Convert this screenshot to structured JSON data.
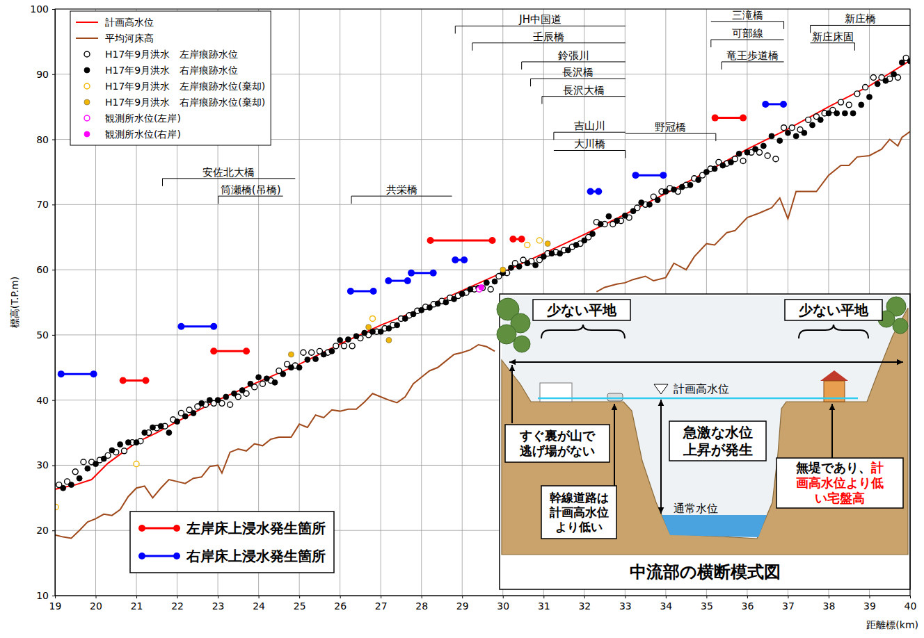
{
  "chart_data": {
    "type": "line",
    "xlabel": "距離標(km)",
    "ylabel": "標高(T.P.m)",
    "xlim": [
      19,
      40
    ],
    "xticks": [
      19,
      20,
      21,
      22,
      23,
      24,
      25,
      26,
      27,
      28,
      29,
      30,
      31,
      32,
      33,
      34,
      35,
      36,
      37,
      38,
      39,
      40
    ],
    "ylim": [
      10,
      100
    ],
    "yticks": [
      10,
      20,
      30,
      40,
      50,
      60,
      70,
      80,
      90,
      100
    ],
    "grid": true,
    "legend": "upper left",
    "series": [
      {
        "name": "計画高水位",
        "type": "line",
        "color": "#ff0000",
        "marker": "none",
        "line_style": "solid",
        "x": [
          19,
          19.5,
          19.9,
          20.3,
          21,
          21.5,
          22,
          23,
          24,
          25,
          26,
          27,
          28,
          29,
          30,
          31,
          32,
          33,
          34,
          35,
          36,
          37,
          38,
          39,
          40
        ],
        "values": [
          26.3,
          27,
          27.8,
          30.3,
          33.5,
          35,
          36.7,
          40,
          42.8,
          45.5,
          48.6,
          51.5,
          54,
          56.8,
          59.6,
          62.5,
          65.4,
          68.5,
          71.7,
          75,
          78.5,
          81.6,
          85,
          88.2,
          92.1
        ]
      },
      {
        "name": "平均河床高",
        "type": "line",
        "color": "#a04a1c",
        "marker": "none",
        "line_style": "solid",
        "x": [
          19,
          19.2,
          19.4,
          19.6,
          19.8,
          20,
          20.2,
          20.4,
          20.6,
          20.8,
          21,
          21.2,
          21.4,
          21.6,
          21.8,
          22,
          22.2,
          22.4,
          22.6,
          22.8,
          23,
          23.1,
          23.3,
          23.5,
          23.7,
          23.9,
          24.1,
          24.3,
          24.5,
          24.8,
          25,
          25.2,
          25.4,
          25.6,
          25.8,
          26,
          26.2,
          26.4,
          26.6,
          26.8,
          27,
          27.2,
          27.4,
          27.6,
          27.8,
          28,
          28.2,
          28.4,
          28.6,
          28.8,
          29,
          29.2,
          29.4,
          29.6,
          29.8,
          31,
          32.3,
          32.5,
          32.8,
          33,
          33.2,
          33.5,
          33.7,
          34,
          34.2,
          34.5,
          34.7,
          35,
          35.2,
          35.5,
          35.7,
          36,
          36.3,
          36.6,
          36.8,
          37,
          37.2,
          37.5,
          37.7,
          38,
          38.3,
          38.5,
          38.7,
          39,
          39.3,
          39.5,
          39.7,
          39.8,
          40
        ],
        "values": [
          19.3,
          19,
          18.8,
          20,
          21.3,
          21.8,
          22.5,
          22.3,
          23.2,
          25.2,
          26.5,
          26.8,
          25,
          26.5,
          27.8,
          27.5,
          27.2,
          28,
          28.2,
          29.8,
          30,
          28.8,
          32,
          32.5,
          32.2,
          33.3,
          33,
          34,
          34.3,
          34.3,
          36.3,
          35.8,
          37.7,
          37.3,
          38.5,
          38.3,
          38.6,
          38.6,
          39.7,
          41,
          40.5,
          40,
          39.6,
          40.5,
          42.5,
          43.5,
          44.5,
          45,
          46,
          47,
          47.3,
          47.7,
          48.5,
          48.2,
          47.5,
          null,
          56.6,
          57.3,
          57.8,
          58,
          58.5,
          59,
          58.3,
          58.8,
          61,
          60,
          62,
          64,
          63.8,
          65.7,
          66,
          68,
          68.7,
          69.5,
          71,
          67.8,
          72,
          72,
          72,
          74.5,
          76,
          76,
          77.3,
          77.5,
          78.5,
          80,
          79,
          80.3,
          81.2
        ]
      },
      {
        "name": "H17年9月洪水　左岸痕跡水位",
        "type": "scatter",
        "color": "#000000",
        "marker": "open_circle",
        "x": [
          19.1,
          19.3,
          19.5,
          19.7,
          19.9,
          20.1,
          20.3,
          20.5,
          20.7,
          20.9,
          21.1,
          21.3,
          21.5,
          21.7,
          21.9,
          22.1,
          22.3,
          22.5,
          22.7,
          22.9,
          23.1,
          23.3,
          23.5,
          23.7,
          23.9,
          24.1,
          24.3,
          24.5,
          24.7,
          24.9,
          25.1,
          25.3,
          25.5,
          25.7,
          25.9,
          26.1,
          26.3,
          26.5,
          26.7,
          26.9,
          27.1,
          27.3,
          27.5,
          27.7,
          27.9,
          28.1,
          28.3,
          28.5,
          28.7,
          28.9,
          29.1,
          29.3,
          29.5,
          29.7,
          29.9,
          30.1,
          30.3,
          30.5,
          30.7,
          30.9,
          31.1,
          31.3,
          31.5,
          31.7,
          31.9,
          32.1,
          32.3,
          32.5,
          32.7,
          32.9,
          33.1,
          33.3,
          33.5,
          33.7,
          33.9,
          34.1,
          34.3,
          34.5,
          34.7,
          34.9,
          35.1,
          35.3,
          35.5,
          35.7,
          35.9,
          36.1,
          36.3,
          36.5,
          36.7,
          36.9,
          37.1,
          37.3,
          37.5,
          37.7,
          37.9,
          38.1,
          38.3,
          38.5,
          38.7,
          38.9,
          39.1,
          39.3,
          39.5,
          39.7,
          39.9
        ],
        "values": [
          27,
          27.5,
          29,
          30.5,
          30.5,
          30.8,
          31.5,
          32,
          32.2,
          33.5,
          33.7,
          35,
          35.7,
          36,
          37,
          38,
          38.5,
          39,
          39.3,
          39.5,
          39.5,
          39.3,
          40.5,
          41,
          42,
          42.5,
          43,
          44.5,
          45.5,
          45.3,
          47.3,
          47.3,
          47.5,
          47.3,
          48.3,
          48.3,
          48.3,
          49.5,
          50,
          50.5,
          51,
          51.5,
          52.5,
          53,
          53.7,
          54.3,
          54.7,
          55.2,
          55.7,
          56,
          56.5,
          57,
          57.2,
          57,
          59,
          59.5,
          61,
          61.5,
          61.3,
          61.5,
          62.5,
          62.7,
          63,
          63.5,
          64,
          65,
          67.3,
          67,
          67,
          67.5,
          68,
          69.5,
          70,
          71.2,
          72,
          72.5,
          72,
          73,
          74,
          74.5,
          75.5,
          76.5,
          76.3,
          77,
          76.7,
          78,
          78,
          77.5,
          77,
          81.8,
          81.8,
          81.5,
          83,
          83.5,
          84,
          84.5,
          85.7,
          85.3,
          87,
          88,
          89.5,
          89.5,
          89.3,
          89.5,
          92.5
        ]
      },
      {
        "name": "H17年9月洪水　右岸痕跡水位",
        "type": "scatter",
        "color": "#000000",
        "marker": "circle",
        "x": [
          19.2,
          19.4,
          19.6,
          19.8,
          20,
          20.2,
          20.4,
          20.6,
          20.8,
          21,
          21.2,
          21.4,
          21.6,
          21.8,
          22,
          22.2,
          22.4,
          22.6,
          22.8,
          23,
          23.2,
          23.4,
          23.6,
          23.8,
          24,
          24.2,
          24.4,
          24.6,
          24.8,
          25,
          25.2,
          25.4,
          25.6,
          25.8,
          26,
          26.2,
          26.4,
          26.6,
          26.8,
          27,
          27.2,
          27.4,
          27.6,
          27.8,
          28,
          28.2,
          28.4,
          28.6,
          28.8,
          29,
          29.2,
          29.4,
          29.6,
          29.8,
          30,
          30.2,
          30.4,
          30.6,
          30.8,
          31,
          31.2,
          31.4,
          31.6,
          31.8,
          32,
          32.2,
          32.4,
          32.6,
          32.8,
          33,
          33.2,
          33.4,
          33.6,
          33.8,
          34,
          34.2,
          34.4,
          34.6,
          34.8,
          35,
          35.2,
          35.4,
          35.6,
          35.8,
          36,
          36.2,
          36.4,
          36.6,
          36.8,
          37,
          37.2,
          37.4,
          37.6,
          37.8,
          38,
          38.2,
          38.4,
          38.6,
          38.8,
          39,
          39.2,
          39.4,
          39.6,
          39.8,
          40
        ],
        "values": [
          26.5,
          27,
          28,
          29.5,
          30.2,
          31,
          32.3,
          33.2,
          33.5,
          33.5,
          35,
          35.8,
          36,
          35,
          36.7,
          37.5,
          38,
          39.5,
          40,
          40,
          40.5,
          41,
          41.5,
          42.5,
          43.5,
          43.3,
          42.7,
          44,
          45,
          45,
          46.2,
          46.3,
          47,
          47.5,
          49.2,
          49.3,
          49.8,
          50.3,
          50.5,
          50.5,
          51,
          51.5,
          52.5,
          53.2,
          53.8,
          54.2,
          54.8,
          55,
          55.5,
          56.3,
          57,
          57.2,
          58,
          58.2,
          59.5,
          60.3,
          60.5,
          61,
          60.7,
          62,
          62.5,
          62.5,
          63,
          63.8,
          64.5,
          65.5,
          67,
          68.2,
          67.5,
          68.3,
          69,
          70.3,
          70,
          70.7,
          72,
          72.3,
          72.7,
          73,
          73.8,
          75,
          75.5,
          76,
          76.5,
          77.8,
          78,
          78.5,
          79,
          80.5,
          79.8,
          81,
          80.5,
          81,
          82.2,
          83,
          84,
          84,
          84,
          84,
          85.3,
          86.5,
          88.5,
          89,
          90,
          91.8,
          92
        ]
      },
      {
        "name": "H17年9月洪水　左岸痕跡水位(棄却)",
        "type": "scatter",
        "color": "#f2b705",
        "marker": "open_circle",
        "x": [
          19.02,
          21,
          26.8,
          30.6,
          30.9
        ],
        "values": [
          23.6,
          30.2,
          52.5,
          63.8,
          64.5
        ]
      },
      {
        "name": "H17年9月洪水　右岸痕跡水位(棄却)",
        "type": "scatter",
        "color": "#f2b705",
        "marker": "circle",
        "x": [
          24.8,
          26.7,
          27.2,
          30,
          31.1
        ],
        "values": [
          47,
          51.2,
          49.2,
          60,
          64
        ]
      },
      {
        "name": "観測所水位(左岸)",
        "type": "scatter",
        "color": "#ff00ff",
        "marker": "open_circle",
        "x": [
          29.42
        ],
        "values": [
          57
        ]
      },
      {
        "name": "観測所水位(右岸)",
        "type": "scatter",
        "color": "#ff00ff",
        "marker": "circle",
        "x": [
          29.47
        ],
        "values": [
          57.3
        ]
      }
    ],
    "flood_segments": [
      {
        "name": "左岸床上浸水発生箇所",
        "color": "#ff0000",
        "segments": [
          {
            "x": [
              20.67,
              21.23
            ],
            "value": 43
          },
          {
            "x": [
              22.9,
              23.7
            ],
            "value": 47.5
          },
          {
            "x": [
              28.22,
              29.74
            ],
            "value": 64.5
          },
          {
            "x": [
              30.25,
              30.46
            ],
            "value": 64.7
          },
          {
            "x": [
              35.21,
              35.9
            ],
            "value": 83.3
          }
        ]
      },
      {
        "name": "右岸床上浸水発生箇所",
        "color": "#0000ff",
        "segments": [
          {
            "x": [
              19.15,
              19.95
            ],
            "value": 44
          },
          {
            "x": [
              22.1,
              22.9
            ],
            "value": 51.3
          },
          {
            "x": [
              26.26,
              26.82
            ],
            "value": 56.7
          },
          {
            "x": [
              27.19,
              27.66
            ],
            "value": 58.3
          },
          {
            "x": [
              27.75,
              28.29
            ],
            "value": 59.5
          },
          {
            "x": [
              28.83,
              29.05
            ],
            "value": 61.5
          },
          {
            "x": [
              32.15,
              32.35
            ],
            "value": 72
          },
          {
            "x": [
              33.26,
              33.94
            ],
            "value": 74.5
          },
          {
            "x": [
              36.45,
              36.89
            ],
            "value": 85.4
          }
        ]
      }
    ],
    "annotations": [
      {
        "text": "JH中国道",
        "x": 28.83,
        "x_end": 33.01,
        "y": 97.4
      },
      {
        "text": "壬辰橋",
        "x": 29.25,
        "x_end": 33.01,
        "y": 94.8
      },
      {
        "text": "鈴張川",
        "x": 30.46,
        "x_end": 33.01,
        "y": 91.9
      },
      {
        "text": "長沢橋",
        "x": 30.68,
        "x_end": 33.01,
        "y": 89.3
      },
      {
        "text": "長沢大橋",
        "x": 30.96,
        "x_end": 33.01,
        "y": 86.6
      },
      {
        "text": "吉山川",
        "x": 31.25,
        "x_end": 33.01,
        "y": 81.1
      },
      {
        "text": "大川橋",
        "x": 33.01,
        "x_end": 31.25,
        "y": 78.3
      },
      {
        "text": "野冠橋",
        "x": 35.23,
        "x_end": 33.01,
        "y": 80.9
      },
      {
        "text": "三滝橋",
        "x": 36.9,
        "x_end": 35.11,
        "y": 98.1
      },
      {
        "text": "可部線",
        "x": 35.11,
        "x_end": 36.9,
        "y": 95.3
      },
      {
        "text": "竜王歩道橋",
        "x": 35.37,
        "x_end": 36.9,
        "y": 91.9
      },
      {
        "text": "新庄橋",
        "x": 37.55,
        "x_end": 40,
        "y": 97.5
      },
      {
        "text": "新庄床固",
        "x": 38.64,
        "x_end": 37.55,
        "y": 94.8
      },
      {
        "text": "安佐北大橋",
        "x": 21.64,
        "x_end": 24.9,
        "y": 74
      },
      {
        "text": "筒瀬橋(吊橋)",
        "x": 23.01,
        "x_end": 24.6,
        "y": 71.3
      },
      {
        "text": "共栄橋",
        "x": 26.28,
        "x_end": 28.75,
        "y": 71.3
      }
    ]
  },
  "inset": {
    "title": "中流部の横断模式図",
    "flat_land": [
      "少ない平地",
      "少ない平地"
    ],
    "water_level_label": "計画高水位",
    "normal_level_label": "通常水位",
    "notes": [
      {
        "lines": [
          [
            {
              "text": "すぐ裏が山で",
              "color": "#000000"
            }
          ],
          [
            {
              "text": "逃げ場がない",
              "color": "#000000"
            }
          ]
        ]
      },
      {
        "lines": [
          [
            {
              "text": "急激な水位",
              "color": "#000000"
            }
          ],
          [
            {
              "text": "上昇が発生",
              "color": "#000000"
            }
          ]
        ]
      },
      {
        "lines": [
          [
            {
              "text": "幹線道路は",
              "color": "#000000"
            }
          ],
          [
            {
              "text": "計画高水位",
              "color": "#000000"
            }
          ],
          [
            {
              "text": "より低い",
              "color": "#000000"
            }
          ]
        ]
      },
      {
        "lines": [
          [
            {
              "text": "無堤であり、",
              "color": "#000000"
            },
            {
              "text": "計",
              "color": "#ff0000"
            }
          ],
          [
            {
              "text": "画高水位より低",
              "color": "#ff0000"
            }
          ],
          [
            {
              "text": "い宅盤高",
              "color": "#ff0000"
            }
          ]
        ]
      }
    ]
  }
}
